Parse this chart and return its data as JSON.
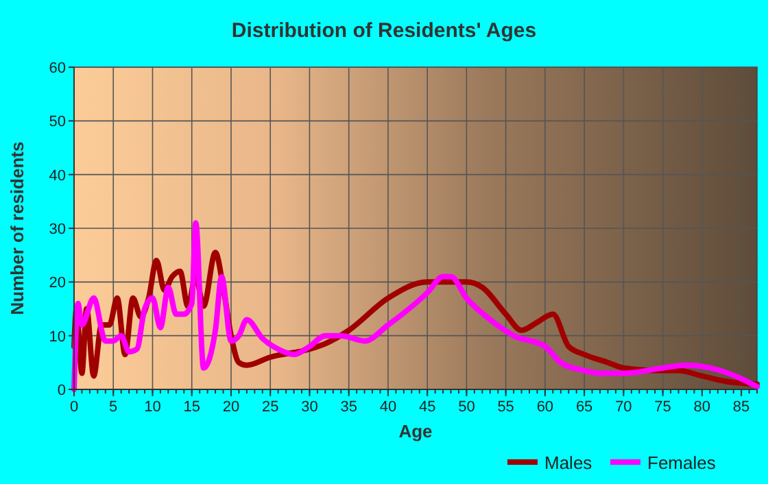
{
  "chart_data": {
    "type": "line",
    "title": "Distribution of Residents' Ages",
    "xlabel": "Age",
    "ylabel": "Number of residents",
    "xlim": [
      0,
      87
    ],
    "ylim": [
      0,
      60
    ],
    "xticks": [
      0,
      5,
      10,
      15,
      20,
      25,
      30,
      35,
      40,
      45,
      50,
      55,
      60,
      65,
      70,
      75,
      80,
      85
    ],
    "yticks": [
      0,
      10,
      20,
      30,
      40,
      50,
      60
    ],
    "grid": true,
    "legend": "bottom",
    "series": [
      {
        "name": "Males",
        "color": "#a00000",
        "x": [
          0,
          0.3,
          1,
          1.6,
          2.5,
          3.5,
          4.5,
          5.5,
          6.5,
          7.5,
          8.5,
          9.5,
          10.5,
          11.5,
          12.5,
          13.5,
          14.5,
          15.5,
          16.5,
          18,
          19,
          20,
          21,
          22,
          25,
          30,
          32,
          35,
          40,
          45,
          50,
          52,
          55,
          57,
          59,
          61,
          63,
          65,
          68,
          70,
          75,
          77,
          80,
          83,
          87
        ],
        "values": [
          8,
          15,
          3,
          15,
          2.5,
          12,
          12,
          17,
          6.5,
          17,
          13.5,
          17,
          24,
          18.5,
          21,
          22,
          15.5,
          21,
          15.5,
          25.5,
          19,
          10,
          5,
          4.5,
          6,
          7.5,
          8.5,
          11,
          17,
          20,
          20,
          19,
          14,
          11,
          12.5,
          14,
          8,
          6.5,
          5,
          4,
          3.5,
          3.5,
          2.5,
          1.5,
          1
        ]
      },
      {
        "name": "Females",
        "color": "#ff00ff",
        "x": [
          0,
          0.5,
          1,
          2.5,
          4,
          5,
          6,
          7,
          8,
          9,
          10,
          11,
          12,
          13,
          14,
          15,
          15.5,
          16.5,
          18,
          18.8,
          20,
          21,
          22,
          24,
          26,
          28,
          30,
          32,
          34,
          37,
          40,
          45,
          47,
          48,
          50,
          53,
          56,
          60,
          62,
          65,
          67,
          70,
          75,
          78,
          81,
          85,
          87
        ],
        "values": [
          0,
          16,
          12,
          17,
          9,
          9,
          10,
          7,
          7.5,
          15,
          17,
          11.5,
          19,
          14,
          14,
          16,
          31,
          4,
          11,
          21,
          9,
          10,
          13,
          9.5,
          7.5,
          6.5,
          8,
          10,
          10,
          9,
          12,
          18,
          21,
          21,
          17,
          13,
          10,
          8,
          5,
          3.5,
          3,
          3,
          4,
          4.5,
          4,
          2,
          0.5
        ]
      }
    ]
  }
}
